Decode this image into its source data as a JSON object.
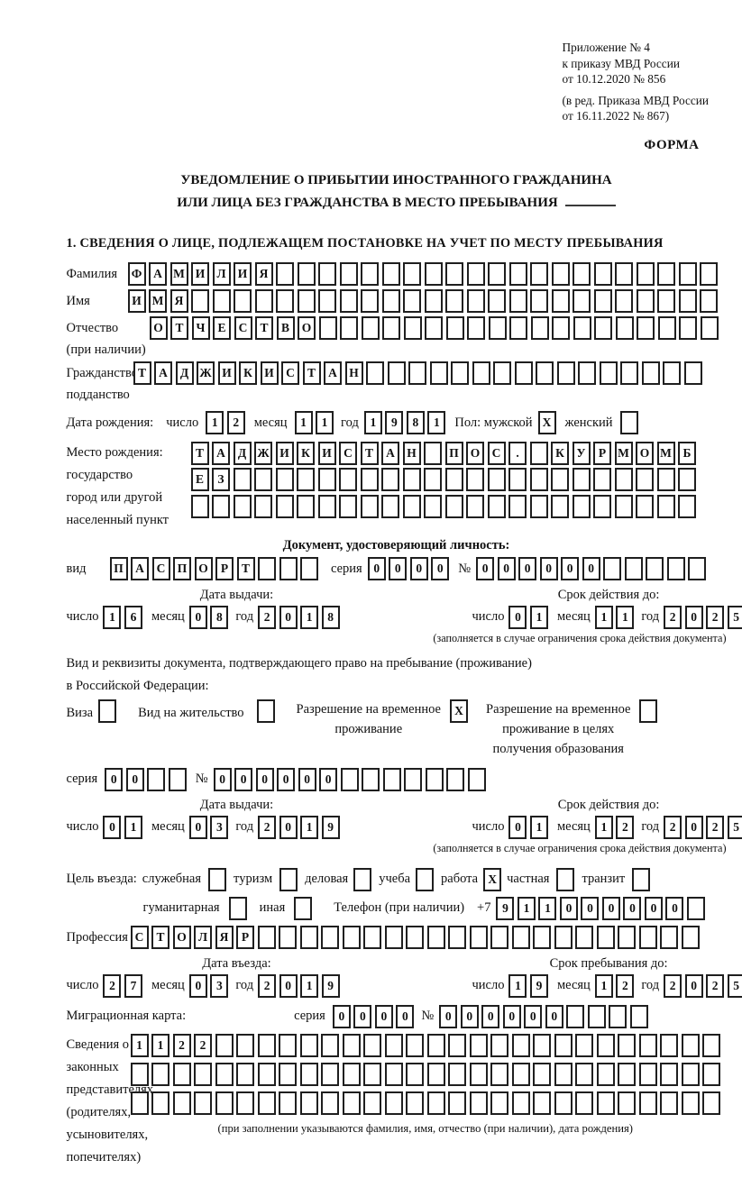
{
  "ref": [
    "Приложение № 4",
    "к приказу МВД России",
    "от 10.12.2020 № 856",
    "(в ред. Приказа МВД России",
    "от 16.11.2022 № 867)"
  ],
  "form_word": "ФОРМА",
  "title": [
    "УВЕДОМЛЕНИЕ О ПРИБЫТИИ ИНОСТРАННОГО ГРАЖДАНИНА",
    "ИЛИ ЛИЦА БЕЗ ГРАЖДАНСТВА В МЕСТО ПРЕБЫВАНИЯ"
  ],
  "section1": "1. СВЕДЕНИЯ О ЛИЦЕ, ПОДЛЕЖАЩЕМ ПОСТАНОВКЕ НА УЧЕТ ПО МЕСТУ ПРЕБЫВАНИЯ",
  "labels": {
    "surname": "Фамилия",
    "given_name": "Имя",
    "patronymic": "Отчество",
    "patronymic2": "(при наличии)",
    "citizenship": "Гражданство,",
    "citizenship2": "подданство",
    "birth_date": "Дата рождения:",
    "day": "число",
    "month": "месяц",
    "year": "год",
    "sex_male": "Пол: мужской",
    "sex_female": "женский",
    "birth_place": "Место рождения:",
    "birth_place2": "государство",
    "birth_place3": "город или другой",
    "birth_place4": "населенный пункт",
    "identity_doc_heading": "Документ, удостоверяющий личность:",
    "doc_type": "вид",
    "series": "серия",
    "number": "№",
    "issue_date": "Дата выдачи:",
    "valid_until": "Срок действия до:",
    "valid_note": "(заполняется в случае ограничения срока действия документа)",
    "residence_doc1": "Вид и реквизиты документа, подтверждающего право на пребывание (проживание)",
    "residence_doc2": "в Российской Федерации:",
    "visa": "Виза",
    "residence_permit": "Вид на жительство",
    "temp_permit1": "Разрешение на временное",
    "temp_permit2": "проживание",
    "edu_permit1": "Разрешение на временное",
    "edu_permit2": "проживание в целях",
    "edu_permit3": "получения образования",
    "purpose": "Цель въезда:",
    "phone": "Телефон (при наличии)",
    "phone_prefix": "+7",
    "profession": "Профессия",
    "entry_date": "Дата въезда:",
    "stay_until": "Срок пребывания до:",
    "migration_card": "Миграционная карта:",
    "rep1": "Сведения о",
    "rep2": "законных",
    "rep3": "представителях",
    "rep4": "(родителях,",
    "rep5": "усыновителях,",
    "rep6": "попечителях)",
    "rep_note": "(при заполнении указываются фамилия, имя, отчество (при наличии), дата рождения)"
  },
  "person": {
    "surname": "ФАМИЛИЯ",
    "given_name": "ИМЯ",
    "patronymic": "ОТЧЕСТВО",
    "citizenship": "ТАДЖИКИСТАН",
    "birth_day": "12",
    "birth_month": "11",
    "birth_year": "1981",
    "male_check": "X",
    "female_check": "",
    "birthplace_row1": "ТАДЖИКИСТАН ПОС. КУРМОМБ",
    "birthplace_row2": "ЕЗ",
    "birthplace_row3": ""
  },
  "identity_doc": {
    "type": "ПАСПОРТ",
    "series": "0000",
    "number": "000000",
    "issue_day": "16",
    "issue_month": "08",
    "issue_year": "2018",
    "valid_day": "01",
    "valid_month": "11",
    "valid_year": "2025"
  },
  "residence_doc": {
    "visa_check": "",
    "residence_permit_check": "",
    "temp_permit_check": "X",
    "edu_permit_check": "",
    "series": "00",
    "number": "000000",
    "issue_day": "01",
    "issue_month": "03",
    "issue_year": "2019",
    "valid_day": "01",
    "valid_month": "12",
    "valid_year": "2025"
  },
  "entry": {
    "purpose_options": [
      {
        "label": "служебная",
        "check": ""
      },
      {
        "label": "туризм",
        "check": ""
      },
      {
        "label": "деловая",
        "check": ""
      },
      {
        "label": "учеба",
        "check": ""
      },
      {
        "label": "работа",
        "check": "X"
      },
      {
        "label": "частная",
        "check": ""
      },
      {
        "label": "транзит",
        "check": ""
      }
    ],
    "purpose_options2": [
      {
        "label": "гуманитарная",
        "check": ""
      },
      {
        "label": "иная",
        "check": ""
      }
    ],
    "phone_digits": "911000000",
    "profession": "СТОЛЯР",
    "entry_day": "27",
    "entry_month": "03",
    "entry_year": "2019",
    "stay_day": "19",
    "stay_month": "12",
    "stay_year": "2025"
  },
  "migration_card": {
    "series": "0000",
    "number": "000000"
  },
  "representatives": {
    "row1": "1122",
    "row2": "",
    "row3": ""
  }
}
